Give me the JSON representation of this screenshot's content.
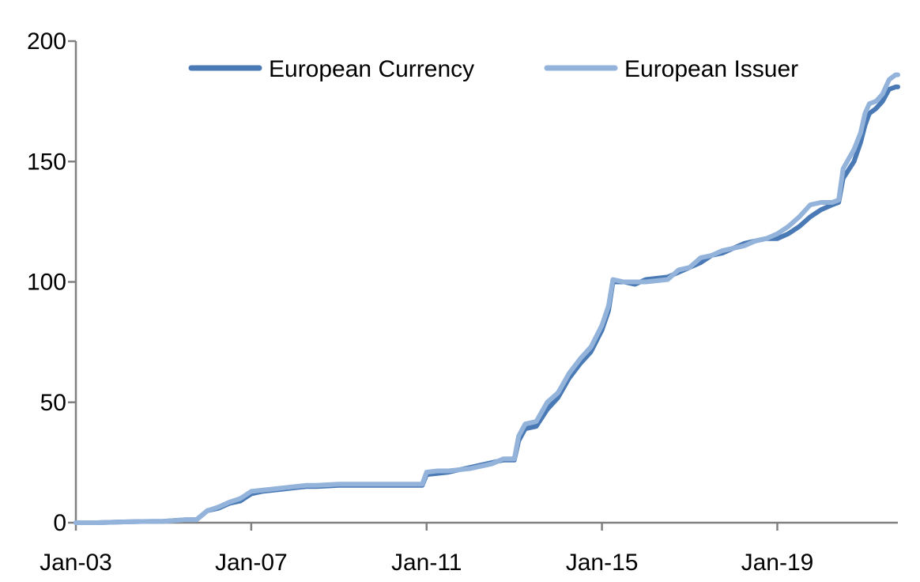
{
  "chart_data": {
    "type": "line",
    "title": "",
    "xlabel": "",
    "ylabel": "",
    "ylim": [
      0,
      200
    ],
    "yticks": [
      0,
      50,
      100,
      150,
      200
    ],
    "xlim": [
      2003.0,
      2021.75
    ],
    "xticks": [
      {
        "label": "Jan-03",
        "value": 2003
      },
      {
        "label": "Jan-07",
        "value": 2007
      },
      {
        "label": "Jan-11",
        "value": 2011
      },
      {
        "label": "Jan-15",
        "value": 2015
      },
      {
        "label": "Jan-19",
        "value": 2019
      }
    ],
    "grid": false,
    "legend_position": "top",
    "series": [
      {
        "name": "European Currency",
        "color": "#4a7ab5",
        "points": [
          [
            2003.0,
            0
          ],
          [
            2003.5,
            0
          ],
          [
            2004.0,
            0.3
          ],
          [
            2004.5,
            0.5
          ],
          [
            2005.0,
            0.6
          ],
          [
            2005.5,
            1.2
          ],
          [
            2005.75,
            1.2
          ],
          [
            2006.0,
            5
          ],
          [
            2006.25,
            6
          ],
          [
            2006.5,
            8
          ],
          [
            2006.75,
            9
          ],
          [
            2007.0,
            12
          ],
          [
            2007.25,
            13
          ],
          [
            2007.5,
            13.5
          ],
          [
            2007.75,
            14
          ],
          [
            2008.0,
            14.5
          ],
          [
            2008.25,
            15
          ],
          [
            2008.5,
            15
          ],
          [
            2009.0,
            15.5
          ],
          [
            2009.5,
            15.5
          ],
          [
            2010.0,
            15.5
          ],
          [
            2010.5,
            15.5
          ],
          [
            2010.9,
            15.5
          ],
          [
            2011.0,
            20
          ],
          [
            2011.25,
            20.5
          ],
          [
            2011.5,
            21
          ],
          [
            2011.75,
            22
          ],
          [
            2012.0,
            23
          ],
          [
            2012.25,
            24
          ],
          [
            2012.5,
            25
          ],
          [
            2012.75,
            26
          ],
          [
            2013.0,
            26
          ],
          [
            2013.1,
            34
          ],
          [
            2013.25,
            39
          ],
          [
            2013.5,
            40
          ],
          [
            2013.75,
            47
          ],
          [
            2014.0,
            52
          ],
          [
            2014.25,
            60
          ],
          [
            2014.5,
            66
          ],
          [
            2014.75,
            71
          ],
          [
            2015.0,
            80
          ],
          [
            2015.15,
            88
          ],
          [
            2015.25,
            100
          ],
          [
            2015.5,
            100
          ],
          [
            2015.75,
            99
          ],
          [
            2016.0,
            101
          ],
          [
            2016.5,
            102
          ],
          [
            2016.75,
            104
          ],
          [
            2017.0,
            106
          ],
          [
            2017.25,
            108
          ],
          [
            2017.5,
            111
          ],
          [
            2017.75,
            112
          ],
          [
            2018.0,
            114
          ],
          [
            2018.25,
            116
          ],
          [
            2018.5,
            117
          ],
          [
            2018.75,
            118
          ],
          [
            2019.0,
            118
          ],
          [
            2019.25,
            120
          ],
          [
            2019.5,
            123
          ],
          [
            2019.75,
            127
          ],
          [
            2020.0,
            130
          ],
          [
            2020.25,
            132
          ],
          [
            2020.4,
            133
          ],
          [
            2020.5,
            143
          ],
          [
            2020.75,
            150
          ],
          [
            2020.9,
            158
          ],
          [
            2021.0,
            165
          ],
          [
            2021.1,
            170
          ],
          [
            2021.25,
            172
          ],
          [
            2021.4,
            175
          ],
          [
            2021.55,
            180
          ],
          [
            2021.7,
            181
          ],
          [
            2021.75,
            181
          ]
        ]
      },
      {
        "name": "European Issuer",
        "color": "#93b3db",
        "points": [
          [
            2003.0,
            0
          ],
          [
            2003.5,
            0
          ],
          [
            2004.0,
            0.3
          ],
          [
            2004.5,
            0.5
          ],
          [
            2005.0,
            0.6
          ],
          [
            2005.5,
            1.2
          ],
          [
            2005.75,
            1.2
          ],
          [
            2006.0,
            5
          ],
          [
            2006.25,
            6.5
          ],
          [
            2006.5,
            8.5
          ],
          [
            2006.75,
            10
          ],
          [
            2007.0,
            13
          ],
          [
            2007.25,
            13.5
          ],
          [
            2007.5,
            14
          ],
          [
            2007.75,
            14.5
          ],
          [
            2008.0,
            15
          ],
          [
            2008.25,
            15.5
          ],
          [
            2008.5,
            15.5
          ],
          [
            2009.0,
            16
          ],
          [
            2009.5,
            16
          ],
          [
            2010.0,
            16
          ],
          [
            2010.5,
            16
          ],
          [
            2010.9,
            16
          ],
          [
            2011.0,
            21
          ],
          [
            2011.25,
            21.5
          ],
          [
            2011.5,
            21.5
          ],
          [
            2011.75,
            22
          ],
          [
            2012.0,
            22.5
          ],
          [
            2012.25,
            23.5
          ],
          [
            2012.5,
            24.5
          ],
          [
            2012.75,
            26.5
          ],
          [
            2013.0,
            26.5
          ],
          [
            2013.1,
            36
          ],
          [
            2013.25,
            41
          ],
          [
            2013.5,
            42
          ],
          [
            2013.75,
            50
          ],
          [
            2014.0,
            54
          ],
          [
            2014.25,
            62
          ],
          [
            2014.5,
            68
          ],
          [
            2014.75,
            73
          ],
          [
            2015.0,
            82
          ],
          [
            2015.15,
            90
          ],
          [
            2015.25,
            101
          ],
          [
            2015.5,
            100
          ],
          [
            2015.75,
            100
          ],
          [
            2016.0,
            100
          ],
          [
            2016.5,
            101
          ],
          [
            2016.75,
            105
          ],
          [
            2017.0,
            106
          ],
          [
            2017.25,
            110
          ],
          [
            2017.5,
            111
          ],
          [
            2017.75,
            113
          ],
          [
            2018.0,
            114
          ],
          [
            2018.25,
            115
          ],
          [
            2018.5,
            117
          ],
          [
            2018.75,
            118
          ],
          [
            2019.0,
            120
          ],
          [
            2019.25,
            123
          ],
          [
            2019.5,
            127
          ],
          [
            2019.75,
            132
          ],
          [
            2020.0,
            133
          ],
          [
            2020.25,
            133
          ],
          [
            2020.4,
            134
          ],
          [
            2020.5,
            147
          ],
          [
            2020.75,
            155
          ],
          [
            2020.9,
            162
          ],
          [
            2021.0,
            170
          ],
          [
            2021.1,
            174
          ],
          [
            2021.25,
            175
          ],
          [
            2021.4,
            178
          ],
          [
            2021.55,
            184
          ],
          [
            2021.7,
            186
          ],
          [
            2021.75,
            186
          ]
        ]
      }
    ]
  }
}
